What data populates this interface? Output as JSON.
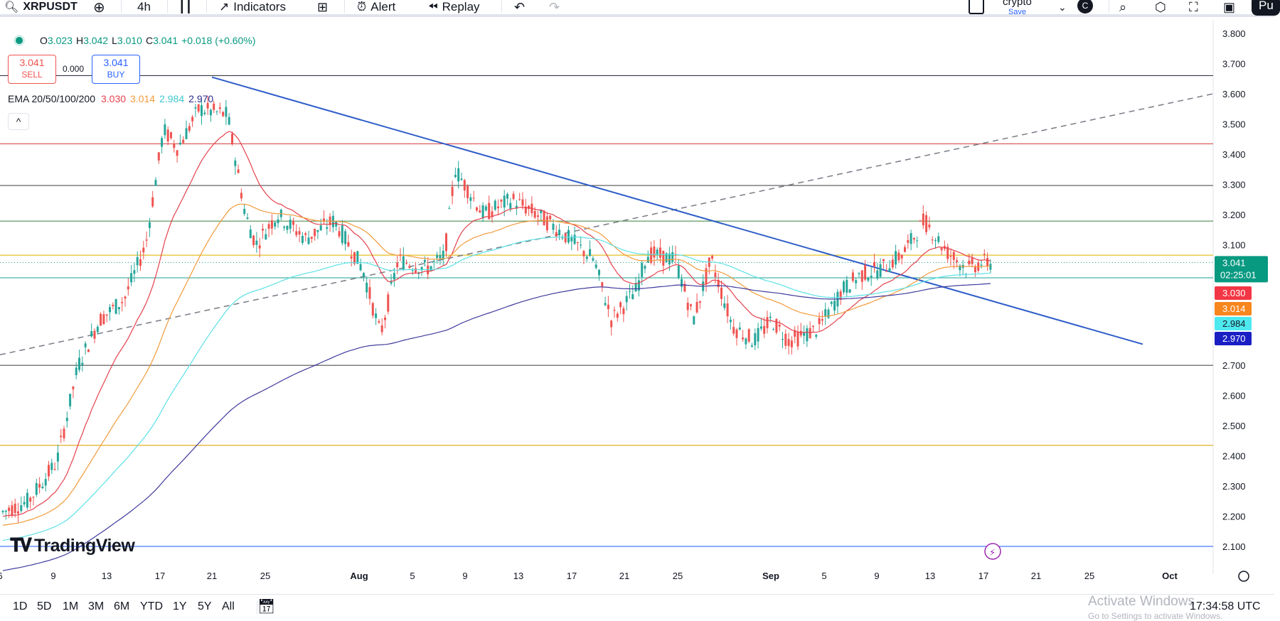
{
  "toolbar": {
    "symbol": "XRPUSDT",
    "interval": "4h",
    "indicators_label": "Indicators",
    "alert_label": "Alert",
    "replay_label": "Replay",
    "layout_name": "crypto",
    "save_label": "Save",
    "avatar_letter": "C",
    "publish_label": "Pu"
  },
  "legend": {
    "open_label": "O",
    "open": "3.023",
    "high_label": "H",
    "high": "3.042",
    "low_label": "L",
    "low": "3.010",
    "close_label": "C",
    "close": "3.041",
    "change": "+0.018 (+0.60%)",
    "sell_price": "3.041",
    "sell_label": "SELL",
    "spread": "0.000",
    "buy_price": "3.041",
    "buy_label": "BUY",
    "ema_label": "EMA 20/50/100/200",
    "ema20": "3.030",
    "ema50": "3.014",
    "ema100": "2.984",
    "ema200": "2.970",
    "collapse": "^"
  },
  "colors": {
    "up": "#26a69a",
    "down": "#ef5350",
    "ema20": "#e5414d",
    "ema50": "#f29b3c",
    "ema100": "#5ce1e6",
    "ema200": "#3f3a9e",
    "trend": "#2e5dc8",
    "price_tag": "#089981"
  },
  "price_axis": {
    "ticks": [
      "3.800",
      "3.700",
      "3.600",
      "3.500",
      "3.400",
      "3.300",
      "3.200",
      "3.100",
      "2.700",
      "2.600",
      "2.500",
      "2.400",
      "2.300",
      "2.200",
      "2.100"
    ],
    "last_price": "3.041",
    "countdown": "02:25:01",
    "ema_tags": [
      "3.030",
      "3.014",
      "2.984",
      "2.970"
    ]
  },
  "time_axis": {
    "labels": [
      "6",
      "9",
      "13",
      "17",
      "21",
      "25",
      "Aug",
      "5",
      "9",
      "13",
      "17",
      "21",
      "25",
      "Sep",
      "5",
      "9",
      "13",
      "17",
      "21",
      "25",
      "Oct"
    ]
  },
  "chart_data": {
    "type": "candlestick",
    "title": "XRPUSDT 4h",
    "ylim": [
      2.1,
      3.8
    ],
    "horizontal_levels": [
      3.66,
      3.434,
      3.296,
      3.178,
      3.065,
      2.99,
      2.7,
      2.435,
      2.1
    ],
    "ema": {
      "ema20": 3.03,
      "ema50": 3.014,
      "ema100": 2.984,
      "ema200": 2.97
    },
    "last": 3.041
  },
  "bottombar": {
    "ranges": [
      "1D",
      "5D",
      "1M",
      "3M",
      "6M",
      "YTD",
      "1Y",
      "5Y",
      "All"
    ],
    "activate_title": "Activate Windows",
    "activate_sub": "Go to Settings to activate Windows.",
    "clock": "17:34:58 UTC"
  },
  "brand": "TradingView"
}
